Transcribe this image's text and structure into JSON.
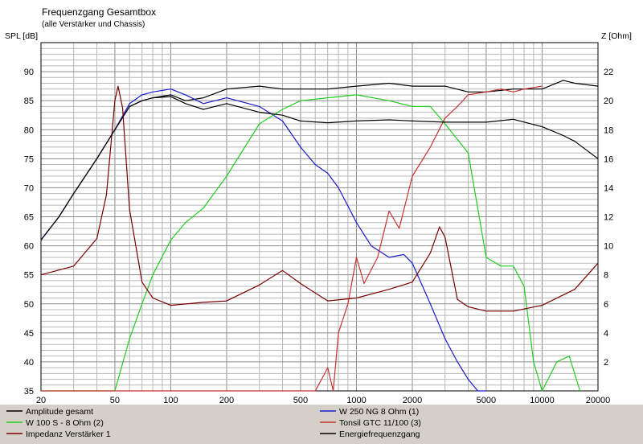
{
  "window": {
    "title": "Frequenzgang Gesamtbox",
    "subtitle": "(alle Verstärker und Chassis)"
  },
  "colors": {
    "background": "#ffffff",
    "grid": "#b8b8b8",
    "legend_bar": "#d4d0c8"
  },
  "chart_data": {
    "type": "line",
    "title": "Frequenzgang Gesamtbox",
    "subtitle": "(alle Verstärker und Chassis)",
    "ylabel": "SPL [dB]",
    "y2label": "Z [Ohm]",
    "xscale": "log",
    "xlim": [
      20,
      20000
    ],
    "ylim": [
      35,
      95
    ],
    "y2lim": [
      0,
      24
    ],
    "xticks": [
      20,
      50,
      100,
      200,
      500,
      1000,
      2000,
      5000,
      10000,
      20000
    ],
    "yticks": [
      35,
      40,
      45,
      50,
      55,
      60,
      65,
      70,
      75,
      80,
      85,
      90
    ],
    "y2ticks": [
      2,
      4,
      6,
      8,
      10,
      12,
      14,
      16,
      18,
      20,
      22
    ],
    "grid": true,
    "legend_position": "bottom",
    "series": [
      {
        "name": "Amplitude gesamt",
        "axis": "left",
        "color": "#000000",
        "x": [
          20,
          25,
          30,
          40,
          50,
          60,
          70,
          80,
          100,
          120,
          150,
          200,
          300,
          400,
          500,
          700,
          1000,
          1500,
          2000,
          3000,
          4000,
          5000,
          7000,
          10000,
          13000,
          15000,
          20000
        ],
        "y": [
          61,
          65,
          69,
          75,
          80,
          84,
          85,
          85.5,
          86,
          85,
          85.5,
          87,
          87.5,
          87,
          87,
          87,
          87.5,
          88,
          87.5,
          87.5,
          86.5,
          86.5,
          87,
          87,
          88.5,
          88,
          87.5
        ]
      },
      {
        "name": "W 250 NG 8 Ohm (1)",
        "axis": "left",
        "color": "#1a1acc",
        "x": [
          20,
          25,
          30,
          40,
          50,
          60,
          70,
          80,
          100,
          120,
          150,
          200,
          300,
          400,
          500,
          600,
          700,
          800,
          1000,
          1200,
          1500,
          1800,
          2000,
          2500,
          3000,
          3500,
          4000,
          4500,
          5000
        ],
        "y": [
          61,
          65,
          69,
          75,
          80,
          84.5,
          86,
          86.5,
          87,
          86,
          84.5,
          85.5,
          84,
          81.5,
          77,
          74,
          72.5,
          70,
          64,
          60,
          58,
          58.5,
          57,
          50,
          44,
          40,
          37,
          35,
          35
        ]
      },
      {
        "name": "W 100 S - 8 Ohm (2)",
        "axis": "left",
        "color": "#22cc22",
        "x": [
          20,
          40,
          50,
          60,
          70,
          80,
          100,
          120,
          150,
          200,
          300,
          400,
          500,
          700,
          1000,
          1500,
          2000,
          2500,
          3000,
          4000,
          5000,
          6000,
          7000,
          8000,
          9000,
          10000,
          12000,
          14000,
          16000
        ],
        "y": [
          35,
          35,
          35,
          44,
          50,
          55,
          61,
          64,
          66.5,
          72,
          81,
          83.5,
          85,
          85.5,
          86,
          85,
          84,
          84,
          81,
          76,
          58,
          56.5,
          56.5,
          53,
          40,
          35,
          40,
          41,
          35
        ]
      },
      {
        "name": "Tonsil GTC 11/100 (3)",
        "axis": "left",
        "color": "#c83232",
        "x": [
          20,
          600,
          650,
          700,
          750,
          800,
          900,
          1000,
          1100,
          1300,
          1500,
          1700,
          2000,
          2500,
          3000,
          3500,
          4000,
          5000,
          6000,
          7000,
          8000,
          10000
        ],
        "y": [
          35,
          35,
          37,
          39,
          35,
          45,
          50,
          58,
          53.5,
          58,
          66,
          63,
          72,
          77,
          82,
          84,
          86,
          86.5,
          87,
          86.5,
          87,
          87.5
        ]
      },
      {
        "name": "Impedanz Verstärker 1",
        "axis": "right",
        "color": "#7a0000",
        "x": [
          20,
          30,
          40,
          45,
          50,
          52,
          55,
          60,
          70,
          80,
          100,
          150,
          200,
          300,
          400,
          500,
          700,
          1000,
          1500,
          2000,
          2500,
          2800,
          3000,
          3500,
          4000,
          5000,
          7000,
          10000,
          15000,
          20000
        ],
        "y": [
          8,
          8.6,
          10.5,
          13.5,
          20,
          21,
          19.5,
          12.5,
          7.5,
          6.4,
          5.9,
          6.1,
          6.2,
          7.3,
          8.3,
          7.4,
          6.2,
          6.4,
          7.0,
          7.5,
          9.5,
          11.3,
          10.6,
          6.3,
          5.8,
          5.5,
          5.5,
          5.9,
          7.0,
          8.8
        ]
      },
      {
        "name": "Energiefrequenzgang",
        "axis": "left",
        "color": "#000000",
        "x": [
          20,
          25,
          30,
          40,
          50,
          60,
          70,
          80,
          100,
          120,
          150,
          200,
          300,
          400,
          500,
          700,
          1000,
          1500,
          2000,
          3000,
          4000,
          5000,
          7000,
          10000,
          13000,
          15000,
          20000
        ],
        "y": [
          61,
          65,
          69,
          75,
          80,
          84,
          85,
          85.5,
          85.7,
          84.5,
          83.5,
          84.5,
          83,
          82.5,
          81.5,
          81.2,
          81.5,
          81.7,
          81.5,
          81.3,
          81.3,
          81.3,
          81.8,
          80.5,
          79,
          78,
          75
        ]
      }
    ]
  }
}
